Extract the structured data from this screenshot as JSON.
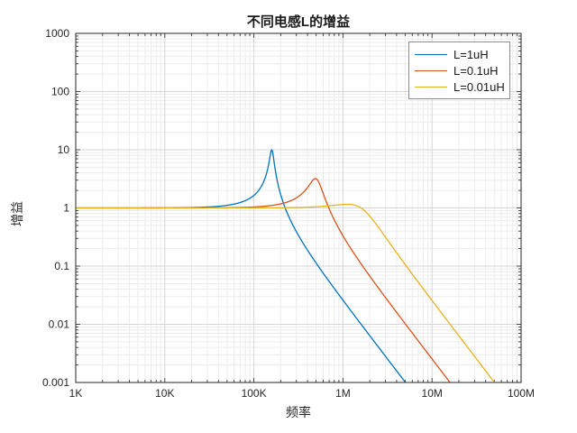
{
  "chart_data": {
    "type": "line",
    "title": "不同电感L的增益",
    "xlabel": "频率",
    "ylabel": "增益",
    "x_scale": "log",
    "y_scale": "log",
    "xlim": [
      1000,
      100000000
    ],
    "ylim": [
      0.001,
      1000
    ],
    "x_tick_labels": [
      "1K",
      "10K",
      "100K",
      "1M",
      "10M",
      "100M"
    ],
    "y_tick_labels": [
      "1000",
      "100",
      "10",
      "1",
      "0.1",
      "0.01",
      "0.001"
    ],
    "grid": {
      "major": true,
      "minor": true,
      "major_color": "#d5d5d5",
      "minor_color": "#ececec"
    },
    "axis_color": "#262626",
    "legend": {
      "position": "northeast",
      "border_color": "#8c8c8c",
      "background": "#ffffff"
    },
    "series": [
      {
        "name": "L=1uH",
        "color": "#0072BD",
        "model": {
          "type": "rlc_lowpass_gain",
          "f0_hz": 159155,
          "Q": 10
        },
        "points": [
          [
            1000,
            1.0
          ],
          [
            10000,
            1.004
          ],
          [
            30000,
            1.037
          ],
          [
            60000,
            1.164
          ],
          [
            100000,
            1.643
          ],
          [
            120000,
            2.283
          ],
          [
            140000,
            4.12
          ],
          [
            150000,
            6.84
          ],
          [
            159155,
            10.0
          ],
          [
            170000,
            5.65
          ],
          [
            180000,
            3.32
          ],
          [
            200000,
            1.69
          ],
          [
            250000,
            0.678
          ],
          [
            300000,
            0.391
          ],
          [
            500000,
            0.113
          ],
          [
            1000000,
            0.026
          ],
          [
            2000000,
            0.0064
          ],
          [
            5060000,
            0.001
          ]
        ]
      },
      {
        "name": "L=0.1uH",
        "color": "#D95319",
        "model": {
          "type": "rlc_lowpass_gain",
          "f0_hz": 503292,
          "Q": 3.162
        },
        "points": [
          [
            1000,
            1.0
          ],
          [
            100000,
            1.039
          ],
          [
            200000,
            1.175
          ],
          [
            300000,
            1.489
          ],
          [
            400000,
            2.242
          ],
          [
            490000,
            3.203
          ],
          [
            550000,
            2.523
          ],
          [
            600000,
            1.769
          ],
          [
            700000,
            0.968
          ],
          [
            800000,
            0.622
          ],
          [
            1000000,
            0.332
          ],
          [
            2000000,
            0.067
          ],
          [
            4000000,
            0.0161
          ],
          [
            10000000,
            0.0025
          ],
          [
            16000000,
            0.001
          ]
        ]
      },
      {
        "name": "L=0.01uH",
        "color": "#EDB120",
        "model": {
          "type": "rlc_lowpass_gain",
          "f0_hz": 1591549,
          "Q": 1
        },
        "points": [
          [
            1000,
            1.0
          ],
          [
            300000,
            1.018
          ],
          [
            600000,
            1.067
          ],
          [
            1000000,
            1.146
          ],
          [
            1125000,
            1.155
          ],
          [
            1400000,
            1.101
          ],
          [
            1600000,
            0.995
          ],
          [
            2000000,
            0.723
          ],
          [
            3000000,
            0.315
          ],
          [
            4000000,
            0.17
          ],
          [
            6000000,
            0.0728
          ],
          [
            10000000,
            0.0257
          ],
          [
            20000000,
            0.0064
          ],
          [
            50600000,
            0.001
          ]
        ]
      }
    ]
  }
}
